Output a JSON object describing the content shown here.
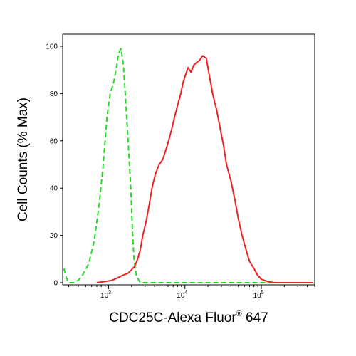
{
  "chart_data": {
    "type": "line",
    "title": "",
    "xlabel": "CDC25C-Alexa Fluor",
    "xlabel_superscript": "®",
    "xlabel_suffix": " 647",
    "ylabel": "Cell Counts (% Max)",
    "x_scale": "log",
    "xlim": [
      250,
      500000
    ],
    "ylim": [
      0,
      100
    ],
    "grid": false,
    "y_ticks": [
      0,
      20,
      40,
      60,
      80,
      100
    ],
    "y_tick_labels": [
      "0",
      "20",
      "40",
      "60",
      "80",
      "100"
    ],
    "x_ticks": [
      1000,
      10000,
      100000
    ],
    "x_tick_labels": [
      {
        "base": "10",
        "exp": "3"
      },
      {
        "base": "10",
        "exp": "4"
      },
      {
        "base": "10",
        "exp": "5"
      }
    ],
    "series": [
      {
        "color": "#22dd22",
        "dash": "dashed",
        "points": [
          [
            260,
            6
          ],
          [
            280,
            2
          ],
          [
            300,
            0
          ],
          [
            350,
            0
          ],
          [
            400,
            1
          ],
          [
            450,
            3
          ],
          [
            550,
            8
          ],
          [
            650,
            18
          ],
          [
            750,
            33
          ],
          [
            850,
            50
          ],
          [
            950,
            70
          ],
          [
            1050,
            80
          ],
          [
            1150,
            84
          ],
          [
            1250,
            90
          ],
          [
            1350,
            97
          ],
          [
            1450,
            99
          ],
          [
            1550,
            93
          ],
          [
            1650,
            80
          ],
          [
            1800,
            60
          ],
          [
            1950,
            40
          ],
          [
            2050,
            22
          ],
          [
            2150,
            10
          ],
          [
            2300,
            3
          ],
          [
            2600,
            0
          ],
          [
            5000,
            0
          ],
          [
            10000,
            0
          ],
          [
            50000,
            0
          ],
          [
            200000,
            0
          ],
          [
            480000,
            0
          ]
        ]
      },
      {
        "color": "#ee2222",
        "dash": "solid",
        "points": [
          [
            700,
            0
          ],
          [
            900,
            0.5
          ],
          [
            1100,
            1
          ],
          [
            1300,
            2
          ],
          [
            1500,
            3
          ],
          [
            1800,
            4
          ],
          [
            2000,
            5.5
          ],
          [
            2200,
            7
          ],
          [
            2400,
            10
          ],
          [
            2600,
            14
          ],
          [
            2800,
            20
          ],
          [
            3100,
            26
          ],
          [
            3400,
            33
          ],
          [
            3700,
            40
          ],
          [
            4100,
            46
          ],
          [
            4600,
            50
          ],
          [
            5100,
            52
          ],
          [
            5600,
            56
          ],
          [
            6100,
            60
          ],
          [
            6700,
            65
          ],
          [
            7300,
            70
          ],
          [
            8000,
            75
          ],
          [
            8800,
            80
          ],
          [
            9500,
            85
          ],
          [
            10200,
            88
          ],
          [
            11000,
            91
          ],
          [
            12000,
            89
          ],
          [
            13000,
            92
          ],
          [
            14000,
            93
          ],
          [
            15500,
            94
          ],
          [
            17000,
            96
          ],
          [
            19000,
            95
          ],
          [
            21000,
            87
          ],
          [
            23000,
            80
          ],
          [
            26000,
            73
          ],
          [
            29000,
            65
          ],
          [
            32000,
            58
          ],
          [
            35000,
            50
          ],
          [
            40000,
            43
          ],
          [
            45000,
            35
          ],
          [
            50000,
            27
          ],
          [
            56000,
            20
          ],
          [
            63000,
            14
          ],
          [
            70000,
            9
          ],
          [
            80000,
            6
          ],
          [
            90000,
            3
          ],
          [
            100000,
            1.5
          ],
          [
            120000,
            0.5
          ],
          [
            150000,
            0
          ],
          [
            480000,
            0
          ]
        ]
      }
    ]
  }
}
